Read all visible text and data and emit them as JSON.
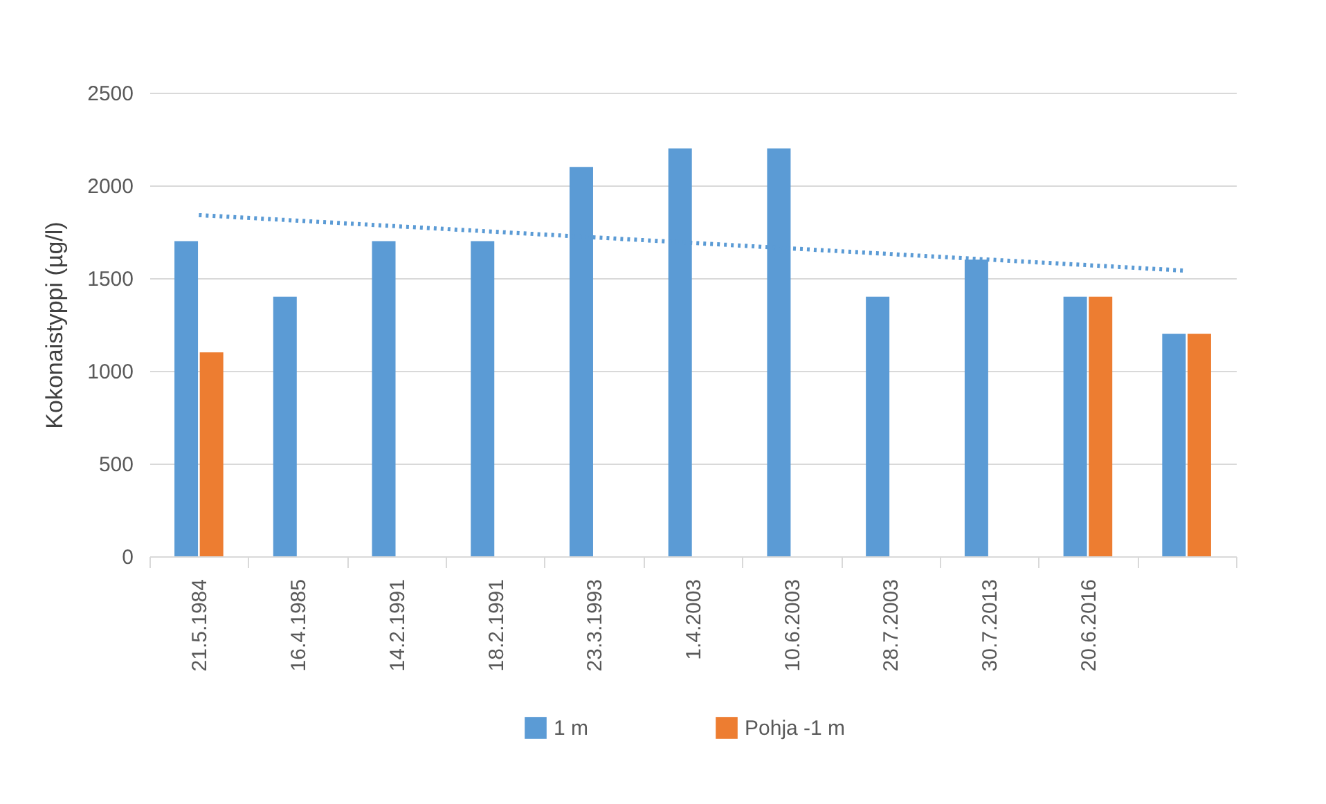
{
  "chart_data": {
    "type": "bar",
    "ylabel": "Kokonaistyppi (µg/l)",
    "categories": [
      "21.5.1984",
      "16.4.1985",
      "14.2.1991",
      "18.2.1991",
      "23.3.1993",
      "1.4.2003",
      "10.6.2003",
      "28.7.2003",
      "30.7.2013",
      "20.6.2016",
      null
    ],
    "series": [
      {
        "name": "1 m",
        "color": "#5b9bd5",
        "values": [
          1700,
          1400,
          1700,
          1700,
          2100,
          2200,
          2200,
          1400,
          1600,
          1400,
          1200
        ]
      },
      {
        "name": "Pohja -1 m",
        "color": "#ed7d31",
        "values": [
          1100,
          null,
          null,
          null,
          null,
          null,
          null,
          null,
          null,
          1400,
          1200
        ]
      },
      {
        "type": "line",
        "color": "#5b9bd5",
        "line_style": "dotted",
        "values": [
          1840,
          null,
          null,
          null,
          null,
          null,
          null,
          null,
          null,
          null,
          1540
        ]
      }
    ],
    "ylim": [
      0,
      2500
    ],
    "yticks": [
      0,
      500,
      1000,
      1500,
      2000,
      2500
    ],
    "grid": "y",
    "legend": "bottom"
  }
}
